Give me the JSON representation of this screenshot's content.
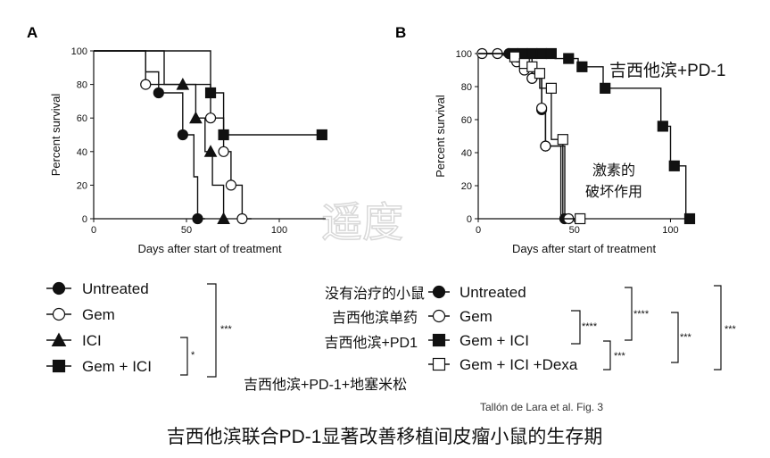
{
  "chart_data": [
    {
      "panel": "A",
      "type": "line",
      "step": true,
      "xlabel": "Days after start of treatment",
      "ylabel": "Percent survival",
      "xlim": [
        0,
        125
      ],
      "ylim": [
        0,
        100
      ],
      "xticks": [
        "0",
        "50",
        "100"
      ],
      "yticks": [
        "0",
        "20",
        "40",
        "60",
        "80",
        "100"
      ],
      "legend_placement": "below",
      "series": [
        {
          "name": "Untreated",
          "marker": "circle-filled",
          "line": [
            [
              0,
              100
            ],
            [
              28,
              100
            ],
            [
              28,
              87.5
            ],
            [
              35,
              87.5
            ],
            [
              35,
              75
            ],
            [
              48,
              75
            ],
            [
              48,
              50
            ],
            [
              54,
              50
            ],
            [
              54,
              25
            ],
            [
              56,
              25
            ],
            [
              56,
              0
            ],
            [
              60,
              0
            ]
          ],
          "points": [
            [
              35,
              75
            ],
            [
              48,
              50
            ],
            [
              56,
              0
            ]
          ]
        },
        {
          "name": "Gem",
          "marker": "circle-open",
          "line": [
            [
              0,
              100
            ],
            [
              28,
              100
            ],
            [
              28,
              80
            ],
            [
              63,
              80
            ],
            [
              63,
              60
            ],
            [
              70,
              60
            ],
            [
              70,
              40
            ],
            [
              74,
              40
            ],
            [
              74,
              20
            ],
            [
              80,
              20
            ],
            [
              80,
              0
            ],
            [
              85,
              0
            ]
          ],
          "points": [
            [
              28,
              80
            ],
            [
              63,
              60
            ],
            [
              70,
              40
            ],
            [
              74,
              20
            ],
            [
              80,
              0
            ]
          ]
        },
        {
          "name": "ICI",
          "marker": "triangle-filled",
          "line": [
            [
              0,
              100
            ],
            [
              38,
              100
            ],
            [
              38,
              80
            ],
            [
              55,
              80
            ],
            [
              55,
              60
            ],
            [
              60,
              60
            ],
            [
              60,
              40
            ],
            [
              64,
              40
            ],
            [
              64,
              20
            ],
            [
              70,
              20
            ],
            [
              70,
              0
            ],
            [
              72,
              0
            ]
          ],
          "points": [
            [
              48,
              80
            ],
            [
              55,
              60
            ],
            [
              63,
              40
            ],
            [
              70,
              0
            ]
          ]
        },
        {
          "name": "Gem + ICI",
          "marker": "square-filled",
          "line": [
            [
              0,
              100
            ],
            [
              63,
              100
            ],
            [
              63,
              75
            ],
            [
              70,
              75
            ],
            [
              70,
              50
            ],
            [
              124,
              50
            ]
          ],
          "points": [
            [
              63,
              75
            ],
            [
              70,
              50
            ],
            [
              123,
              50
            ]
          ]
        }
      ],
      "significance": [
        {
          "pair": "ICI vs Gem + ICI",
          "label": "*"
        },
        {
          "pair": "Untreated vs Gem + ICI",
          "label": "***"
        }
      ]
    },
    {
      "panel": "B",
      "type": "line",
      "step": true,
      "xlabel": "Days after start of treatment",
      "ylabel": "Percent survival",
      "xlim": [
        0,
        110
      ],
      "ylim": [
        0,
        100
      ],
      "xticks": [
        "0",
        "50",
        "100"
      ],
      "yticks": [
        "0",
        "20",
        "40",
        "60",
        "80",
        "100"
      ],
      "legend_placement": "below",
      "series": [
        {
          "name": "Untreated",
          "marker": "circle-filled",
          "line": [
            [
              0,
              100
            ],
            [
              16,
              100
            ],
            [
              16,
              99
            ],
            [
              22,
              99
            ],
            [
              22,
              97
            ],
            [
              28,
              97
            ],
            [
              28,
              85
            ],
            [
              33,
              85
            ],
            [
              33,
              66
            ],
            [
              35,
              66
            ],
            [
              35,
              44
            ],
            [
              43,
              44
            ],
            [
              43,
              0
            ],
            [
              47,
              0
            ]
          ],
          "points": [
            [
              16,
              100
            ],
            [
              22,
              99
            ],
            [
              28,
              85
            ],
            [
              33,
              66
            ],
            [
              35,
              44
            ],
            [
              45,
              0
            ]
          ]
        },
        {
          "name": "Gem",
          "marker": "circle-open",
          "line": [
            [
              0,
              100
            ],
            [
              10,
              100
            ],
            [
              10,
              99
            ],
            [
              20,
              99
            ],
            [
              20,
              95
            ],
            [
              24,
              95
            ],
            [
              24,
              90
            ],
            [
              28,
              90
            ],
            [
              28,
              85
            ],
            [
              33,
              85
            ],
            [
              33,
              67
            ],
            [
              35,
              67
            ],
            [
              35,
              44
            ],
            [
              45,
              44
            ],
            [
              45,
              0
            ],
            [
              48,
              0
            ]
          ],
          "points": [
            [
              2,
              100
            ],
            [
              10,
              100
            ],
            [
              20,
              95
            ],
            [
              24,
              90
            ],
            [
              28,
              85
            ],
            [
              33,
              67
            ],
            [
              35,
              44
            ],
            [
              47,
              0
            ]
          ]
        },
        {
          "name": "Gem + ICI",
          "marker": "square-filled",
          "line": [
            [
              0,
              100
            ],
            [
              40,
              100
            ],
            [
              40,
              97
            ],
            [
              52,
              97
            ],
            [
              52,
              92
            ],
            [
              65,
              92
            ],
            [
              65,
              79
            ],
            [
              95,
              79
            ],
            [
              95,
              56
            ],
            [
              100,
              56
            ],
            [
              100,
              32
            ],
            [
              108,
              32
            ],
            [
              108,
              0
            ],
            [
              112,
              0
            ]
          ],
          "points": [
            [
              18,
              100
            ],
            [
              23,
              100
            ],
            [
              28,
              100
            ],
            [
              33,
              100
            ],
            [
              38,
              100
            ],
            [
              47,
              97
            ],
            [
              54,
              92
            ],
            [
              66,
              79
            ],
            [
              96,
              56
            ],
            [
              102,
              32
            ],
            [
              110,
              0
            ]
          ]
        },
        {
          "name": "Gem + ICI +Dexa",
          "marker": "square-open",
          "line": [
            [
              0,
              100
            ],
            [
              16,
              100
            ],
            [
              16,
              98
            ],
            [
              20,
              98
            ],
            [
              20,
              95
            ],
            [
              24,
              95
            ],
            [
              24,
              92
            ],
            [
              28,
              92
            ],
            [
              28,
              88
            ],
            [
              32,
              88
            ],
            [
              32,
              79
            ],
            [
              38,
              79
            ],
            [
              38,
              48
            ],
            [
              44,
              48
            ],
            [
              44,
              0
            ],
            [
              55,
              0
            ]
          ],
          "points": [
            [
              19,
              98
            ],
            [
              24,
              94
            ],
            [
              28,
              92
            ],
            [
              32,
              88
            ],
            [
              38,
              79
            ],
            [
              44,
              48
            ],
            [
              53,
              0
            ]
          ]
        }
      ],
      "significance": [
        {
          "pair": "Untreated vs Gem + ICI",
          "label": "****"
        },
        {
          "pair": "Gem vs Gem + ICI",
          "label": "****"
        },
        {
          "pair": "Gem + ICI vs Gem + ICI +Dexa",
          "label": "***"
        },
        {
          "pair": "Gem vs Gem + ICI +Dexa",
          "label": "***"
        },
        {
          "pair": "Untreated vs Gem + ICI +Dexa",
          "label": "***"
        }
      ]
    }
  ],
  "labels": {
    "panel_a": "A",
    "panel_b": "B",
    "star1": "*",
    "star3": "***",
    "star4": "****"
  },
  "annotations": {
    "b_gem_ici": "吉西他滨+PD-1",
    "b_dexa_l1": "激素的",
    "b_dexa_l2": "破坏作用",
    "cn_untreated": "没有治疗的小鼠",
    "cn_gem": "吉西他滨单药",
    "cn_gem_ici": "吉西他滨+PD1",
    "cn_dexa": "吉西他滨+PD-1+地塞米松"
  },
  "credit": "Tallón de Lara et al. Fig. 3",
  "caption": "吉西他滨联合PD-1显著改善移植间皮瘤小鼠的生存期",
  "watermark": "遥度"
}
